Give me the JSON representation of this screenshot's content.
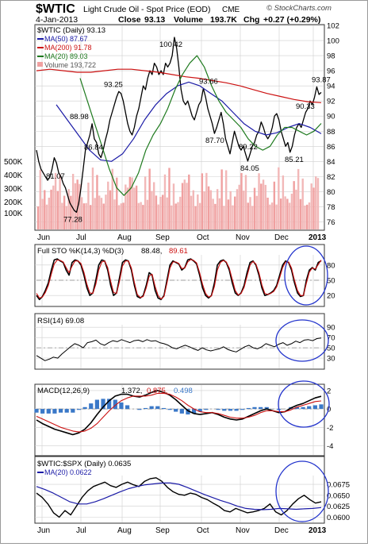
{
  "header": {
    "symbol": "$WTIC",
    "name": "Light Crude Oil - Spot Price (EOD)",
    "exchange": "CME",
    "date": "4-Jan-2013",
    "close_label": "Close",
    "close": "93.13",
    "volume_label": "Volume",
    "volume": "193.7K",
    "chg_label": "Chg",
    "chg": "+0.27 (+0.29%)",
    "watermark": "© StockCharts.com"
  },
  "legend": {
    "main": "$WTIC (Daily) 93.13",
    "ma50": "MA(50) 87.67",
    "ma200": "MA(200) 91.78",
    "ma20": "MA(20) 89.03",
    "volume": "Volume 193,722",
    "sto_title": "Full STO %K(14,3) %D(3)",
    "sto_k": "88.48,",
    "sto_d": "89.61",
    "rsi": "RSI(14) 69.08",
    "macd_title": "MACD(12,26,9)",
    "macd_v1": "1.372,",
    "macd_v2": "0.875,",
    "macd_v3": "0.498",
    "ratio": "$WTIC:$SPX (Daily) 0.0635",
    "ratio_ma": "MA(20) 0.0622"
  },
  "colors": {
    "price": "#000000",
    "ma50": "#1a1aa6",
    "ma200": "#cc1111",
    "ma20": "#1e7a1e",
    "volume_up": "#f2b8b8",
    "volume_down": "#f0a0a0",
    "hist": "#3a78c8",
    "circle": "#2233cc",
    "grid": "#cfcfcf"
  },
  "chart_data": [
    {
      "type": "line",
      "title": "$WTIC Light Crude Oil - Spot Price (EOD)",
      "x_labels": [
        "Jun",
        "Jul",
        "Aug",
        "Sep",
        "Oct",
        "Nov",
        "Dec",
        "2013"
      ],
      "ylim": [
        75,
        102
      ],
      "y_ticks": [
        76,
        78,
        80,
        82,
        84,
        86,
        88,
        90,
        92,
        94,
        96,
        98,
        100,
        102
      ],
      "volume_ticks": [
        "100K",
        "200K",
        "300K",
        "400K",
        "500K"
      ],
      "grid": true,
      "series": [
        {
          "name": "$WTIC",
          "values": [
            85.5,
            84.0,
            83.0,
            82.5,
            82.0,
            81.5,
            81.9,
            83.0,
            84.5,
            83.8,
            82.5,
            82.0,
            81.07,
            80.5,
            79.5,
            78.5,
            78.0,
            77.5,
            77.28,
            78.5,
            80.5,
            83.0,
            85.5,
            86.5,
            87.5,
            88.98,
            87.0,
            86.5,
            85.0,
            84.5,
            85.5,
            86.84,
            88.0,
            89.5,
            90.5,
            91.5,
            92.5,
            93.25,
            93.0,
            92.0,
            90.5,
            89.0,
            88.0,
            87.5,
            88.5,
            90.0,
            91.0,
            92.5,
            94.0,
            93.5,
            95.0,
            96.0,
            95.5,
            97.0,
            96.5,
            95.5,
            96.0,
            95.5,
            97.0,
            96.5,
            97.0,
            98.0,
            100.42,
            99.0,
            96.5,
            93.5,
            92.0,
            91.5,
            92.0,
            91.0,
            90.0,
            89.5,
            90.5,
            91.5,
            92.0,
            93.66,
            92.5,
            91.0,
            90.0,
            89.0,
            87.7,
            88.5,
            89.5,
            90.5,
            89.0,
            87.0,
            86.0,
            85.0,
            86.5,
            88.0,
            87.0,
            86.0,
            85.5,
            86.0,
            85.0,
            84.05,
            85.0,
            86.0,
            86.5,
            87.5,
            88.0,
            89.22,
            88.5,
            87.5,
            87.0,
            87.5,
            88.5,
            90.0,
            90.33,
            89.5,
            88.0,
            87.0,
            86.0,
            86.5,
            85.21,
            86.0,
            87.5,
            88.5,
            89.0,
            88.5,
            89.5,
            90.5,
            91.0,
            92.0,
            91.5,
            92.5,
            93.87,
            92.86,
            93.13
          ]
        },
        {
          "name": "MA(50)",
          "values": [
            91.5,
            89.5,
            87.5,
            85.5,
            84.2,
            84.0,
            85.0,
            87.0,
            89.5,
            91.5,
            93.0,
            94.0,
            94.5,
            94.0,
            93.0,
            92.0,
            90.5,
            89.0,
            88.0,
            87.5,
            87.8,
            88.5,
            89.0,
            88.5,
            87.67
          ]
        },
        {
          "name": "MA(200)",
          "values": [
            96.0,
            96.2,
            96.0,
            95.8,
            95.8,
            96.0,
            96.2,
            96.2,
            96.0,
            95.8,
            95.5,
            95.2,
            95.0,
            94.7,
            94.4,
            94.0,
            93.5,
            93.0,
            92.6,
            92.2,
            91.9,
            91.78
          ]
        },
        {
          "name": "MA(20)",
          "values": [
            95.0,
            92.0,
            89.0,
            86.0,
            83.0,
            80.5,
            79.5,
            80.5,
            82.5,
            85.5,
            87.5,
            89.0,
            91.0,
            93.5,
            95.5,
            97.0,
            98.0,
            96.5,
            94.0,
            92.0,
            90.5,
            89.5,
            88.5,
            87.0,
            86.0,
            85.5,
            86.0,
            87.5,
            88.5,
            88.5,
            88.0,
            87.5,
            88.0,
            89.03
          ]
        }
      ],
      "annotations": [
        "81.07",
        "77.28",
        "88.98",
        "86.84",
        "93.25",
        "100.42",
        "93.66",
        "87.70",
        "89.22",
        "84.05",
        "90.33",
        "85.21",
        "93.87"
      ]
    },
    {
      "type": "line",
      "title": "Full STO %K(14,3) %D(3)",
      "y_ticks": [
        20,
        50,
        80
      ],
      "ylim": [
        0,
        100
      ],
      "series": [
        {
          "name": "%K",
          "values": [
            20,
            12,
            18,
            30,
            45,
            70,
            90,
            92,
            88,
            85,
            70,
            60,
            85,
            90,
            88,
            80,
            60,
            35,
            20,
            25,
            50,
            80,
            90,
            88,
            70,
            40,
            20,
            25,
            55,
            85,
            90,
            88,
            70,
            40,
            18,
            15,
            20,
            40,
            65,
            60,
            30,
            15,
            12,
            20,
            50,
            80,
            88,
            85,
            82,
            70,
            75,
            90,
            92,
            88,
            82,
            60,
            35,
            20,
            15,
            20,
            45,
            80,
            88,
            90,
            85,
            70,
            45,
            25,
            20,
            25,
            40,
            65,
            85,
            88,
            80,
            60,
            35,
            20,
            22,
            25,
            30,
            40,
            60,
            80,
            88,
            85,
            70,
            45,
            25,
            18,
            20,
            50,
            70,
            75,
            70,
            85,
            88.48
          ]
        },
        {
          "name": "%D",
          "values": [
            24,
            15,
            17,
            26,
            40,
            62,
            82,
            90,
            89,
            86,
            75,
            65,
            78,
            88,
            88,
            83,
            66,
            42,
            25,
            24,
            42,
            70,
            86,
            88,
            75,
            48,
            26,
            24,
            48,
            78,
            88,
            88,
            74,
            46,
            22,
            16,
            18,
            35,
            58,
            62,
            38,
            20,
            13,
            18,
            44,
            74,
            86,
            86,
            83,
            73,
            74,
            86,
            91,
            89,
            84,
            65,
            42,
            24,
            17,
            19,
            38,
            70,
            85,
            89,
            86,
            74,
            52,
            30,
            21,
            24,
            36,
            58,
            80,
            87,
            82,
            65,
            41,
            24,
            22,
            24,
            28,
            37,
            55,
            75,
            86,
            86,
            74,
            50,
            30,
            20,
            20,
            44,
            66,
            74,
            72,
            81,
            89.61
          ]
        }
      ]
    },
    {
      "type": "line",
      "title": "RSI(14)",
      "y_ticks": [
        30,
        50,
        70,
        90
      ],
      "ylim": [
        10,
        95
      ],
      "series": [
        {
          "name": "RSI(14)",
          "values": [
            35,
            30,
            25,
            28,
            32,
            30,
            38,
            45,
            52,
            58,
            55,
            50,
            60,
            62,
            65,
            58,
            55,
            60,
            64,
            62,
            66,
            63,
            60,
            64,
            65,
            62,
            66,
            63,
            64,
            60,
            58,
            55,
            50,
            48,
            52,
            55,
            52,
            48,
            45,
            50,
            46,
            44,
            46,
            48,
            52,
            47,
            44,
            42,
            47,
            52,
            55,
            50,
            48,
            52,
            58,
            55,
            52,
            57,
            60,
            55,
            58,
            63,
            60,
            65,
            66,
            64,
            68,
            69.08
          ]
        }
      ]
    },
    {
      "type": "line",
      "title": "MACD(12,26,9)",
      "y_ticks": [
        -4,
        -2,
        0,
        2
      ],
      "ylim": [
        -5,
        2.6
      ],
      "series": [
        {
          "name": "MACD",
          "values": [
            -1.2,
            -1.6,
            -1.9,
            -2.2,
            -2.4,
            -2.6,
            -2.8,
            -2.6,
            -2.2,
            -1.5,
            -0.6,
            0.2,
            0.9,
            1.4,
            1.6,
            1.6,
            1.4,
            1.3,
            1.5,
            1.8,
            2.0,
            1.8,
            1.5,
            1.0,
            0.4,
            -0.2,
            -0.5,
            -0.6,
            -0.5,
            -0.4,
            -0.6,
            -0.9,
            -1.1,
            -1.2,
            -1.1,
            -0.8,
            -0.5,
            -0.2,
            0.0,
            -0.2,
            -0.4,
            -0.3,
            0.1,
            0.4,
            0.6,
            0.9,
            1.2,
            1.372
          ]
        },
        {
          "name": "Signal",
          "values": [
            -0.8,
            -1.1,
            -1.4,
            -1.7,
            -2.0,
            -2.2,
            -2.4,
            -2.5,
            -2.4,
            -2.1,
            -1.6,
            -0.9,
            -0.2,
            0.4,
            0.9,
            1.2,
            1.4,
            1.4,
            1.4,
            1.5,
            1.7,
            1.7,
            1.6,
            1.3,
            0.9,
            0.4,
            0.0,
            -0.3,
            -0.4,
            -0.4,
            -0.5,
            -0.7,
            -0.9,
            -1.0,
            -1.0,
            -0.9,
            -0.7,
            -0.4,
            -0.2,
            -0.2,
            -0.3,
            -0.3,
            -0.1,
            0.2,
            0.4,
            0.6,
            0.8,
            0.875
          ]
        },
        {
          "name": "Histogram",
          "values": [
            -0.4,
            -0.5,
            -0.5,
            -0.5,
            -0.4,
            -0.4,
            -0.4,
            -0.1,
            0.2,
            0.6,
            1.0,
            1.1,
            1.1,
            1.0,
            0.7,
            0.4,
            0.0,
            -0.1,
            0.1,
            0.3,
            0.3,
            0.1,
            -0.1,
            -0.3,
            -0.5,
            -0.6,
            -0.5,
            -0.3,
            -0.1,
            0.0,
            -0.1,
            -0.2,
            -0.2,
            -0.2,
            -0.1,
            0.1,
            0.2,
            0.2,
            0.2,
            0.0,
            -0.1,
            0.0,
            0.2,
            0.2,
            0.2,
            0.3,
            0.4,
            0.498
          ]
        }
      ]
    },
    {
      "type": "line",
      "title": "$WTIC:$SPX (Daily)",
      "y_ticks": [
        0.06,
        0.0625,
        0.065,
        0.0675
      ],
      "y_tick_labels": [
        "0.0600",
        "0.0625",
        "0.0650",
        "0.0675"
      ],
      "ylim": [
        0.0588,
        0.0695
      ],
      "series": [
        {
          "name": "$WTIC:$SPX",
          "values": [
            0.0655,
            0.0645,
            0.063,
            0.061,
            0.06,
            0.0615,
            0.0605,
            0.0625,
            0.0645,
            0.066,
            0.067,
            0.0675,
            0.068,
            0.0672,
            0.0668,
            0.0675,
            0.068,
            0.0674,
            0.067,
            0.0682,
            0.0688,
            0.069,
            0.0682,
            0.0668,
            0.0658,
            0.0652,
            0.065,
            0.0655,
            0.0652,
            0.0645,
            0.064,
            0.0632,
            0.0625,
            0.0615,
            0.0612,
            0.062,
            0.0615,
            0.061,
            0.0612,
            0.0615,
            0.062,
            0.063,
            0.0612,
            0.0605,
            0.0615,
            0.063,
            0.0642,
            0.065,
            0.064,
            0.0632,
            0.0635
          ]
        },
        {
          "name": "MA(20)",
          "values": [
            0.067,
            0.0663,
            0.0655,
            0.0645,
            0.0635,
            0.063,
            0.063,
            0.0635,
            0.0642,
            0.065,
            0.0658,
            0.0665,
            0.067,
            0.0674,
            0.0676,
            0.0678,
            0.0678,
            0.0675,
            0.0668,
            0.066,
            0.0652,
            0.0645,
            0.0638,
            0.0632,
            0.0625,
            0.062,
            0.0618,
            0.0617,
            0.0618,
            0.062,
            0.0619,
            0.0618,
            0.0619,
            0.062,
            0.0622
          ]
        }
      ]
    }
  ]
}
